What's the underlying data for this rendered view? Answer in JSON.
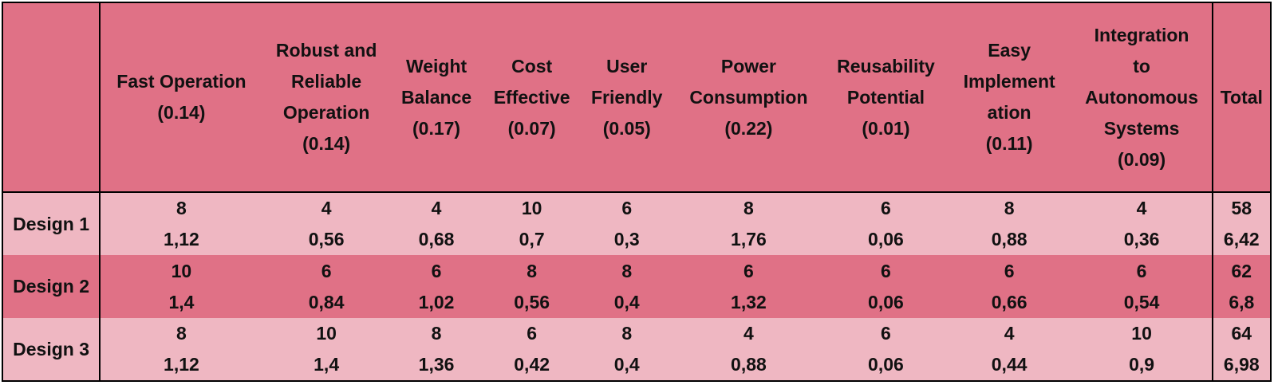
{
  "header": {
    "corner": "",
    "columns": [
      {
        "lines": [
          "Fast Operation",
          "(0.14)"
        ]
      },
      {
        "lines": [
          "Robust and",
          "Reliable",
          "Operation",
          "(0.14)"
        ]
      },
      {
        "lines": [
          "Weight",
          "Balance",
          "(0.17)"
        ]
      },
      {
        "lines": [
          "Cost",
          "Effective",
          "(0.07)"
        ]
      },
      {
        "lines": [
          "User",
          "Friendly",
          "(0.05)"
        ]
      },
      {
        "lines": [
          "Power",
          "Consumption",
          "(0.22)"
        ]
      },
      {
        "lines": [
          "Reusability",
          "Potential",
          "(0.01)"
        ]
      },
      {
        "lines": [
          "Easy",
          "Implement",
          "ation",
          "(0.11)"
        ]
      },
      {
        "lines": [
          "Integration",
          "to",
          "Autonomous",
          "Systems",
          "(0.09)"
        ]
      }
    ],
    "total": "Total"
  },
  "rows": [
    {
      "label": "Design 1",
      "scores": [
        "8",
        "4",
        "4",
        "10",
        "6",
        "8",
        "6",
        "8",
        "4"
      ],
      "weighted": [
        "1,12",
        "0,56",
        "0,68",
        "0,7",
        "0,3",
        "1,76",
        "0,06",
        "0,88",
        "0,36"
      ],
      "total_score": "58",
      "total_weighted": "6,42"
    },
    {
      "label": "Design 2",
      "scores": [
        "10",
        "6",
        "6",
        "8",
        "8",
        "6",
        "6",
        "6",
        "6"
      ],
      "weighted": [
        "1,4",
        "0,84",
        "1,02",
        "0,56",
        "0,4",
        "1,32",
        "0,06",
        "0,66",
        "0,54"
      ],
      "total_score": "62",
      "total_weighted": "6,8"
    },
    {
      "label": "Design 3",
      "scores": [
        "8",
        "10",
        "8",
        "6",
        "8",
        "4",
        "6",
        "4",
        "10"
      ],
      "weighted": [
        "1,12",
        "1,4",
        "1,36",
        "0,42",
        "0,4",
        "0,88",
        "0,06",
        "0,44",
        "0,9"
      ],
      "total_score": "64",
      "total_weighted": "6,98"
    }
  ],
  "colors": {
    "header_bg": "#e07186",
    "row_light_bg": "#efb7c2",
    "row_dark_bg": "#e07186",
    "border": "#000000"
  }
}
